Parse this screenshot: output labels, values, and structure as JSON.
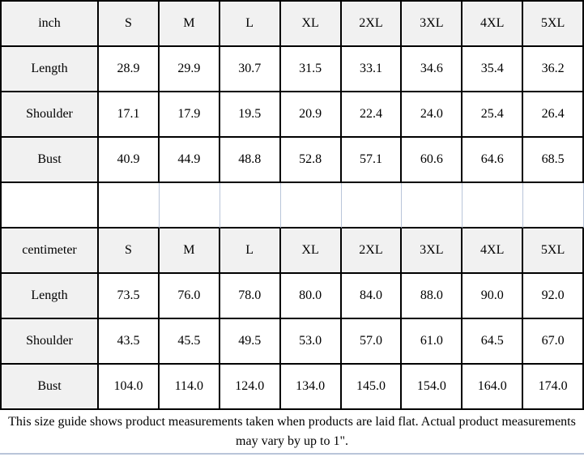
{
  "colors": {
    "grid_border": "#000000",
    "light_grid_border": "#b9c5d9",
    "header_fill": "#f1f1f1",
    "cell_fill": "#ffffff",
    "text": "#000000"
  },
  "chart_data": [
    {
      "type": "table",
      "unit": "inch",
      "columns": [
        "inch",
        "S",
        "M",
        "L",
        "XL",
        "2XL",
        "3XL",
        "4XL",
        "5XL"
      ],
      "rows": [
        [
          "Length",
          "28.9",
          "29.9",
          "30.7",
          "31.5",
          "33.1",
          "34.6",
          "35.4",
          "36.2"
        ],
        [
          "Shoulder",
          "17.1",
          "17.9",
          "19.5",
          "20.9",
          "22.4",
          "24.0",
          "25.4",
          "26.4"
        ],
        [
          "Bust",
          "40.9",
          "44.9",
          "48.8",
          "52.8",
          "57.1",
          "60.6",
          "64.6",
          "68.5"
        ]
      ]
    },
    {
      "type": "table",
      "unit": "centimeter",
      "columns": [
        "centimeter",
        "S",
        "M",
        "L",
        "XL",
        "2XL",
        "3XL",
        "4XL",
        "5XL"
      ],
      "rows": [
        [
          "Length",
          "73.5",
          "76.0",
          "78.0",
          "80.0",
          "84.0",
          "88.0",
          "90.0",
          "92.0"
        ],
        [
          "Shoulder",
          "43.5",
          "45.5",
          "49.5",
          "53.0",
          "57.0",
          "61.0",
          "64.5",
          "67.0"
        ],
        [
          "Bust",
          "104.0",
          "114.0",
          "124.0",
          "134.0",
          "145.0",
          "154.0",
          "164.0",
          "174.0"
        ]
      ]
    }
  ],
  "footer": {
    "note": "This size guide shows product measurements taken when products are laid flat. Actual product measurements may vary by up to 1\"."
  }
}
